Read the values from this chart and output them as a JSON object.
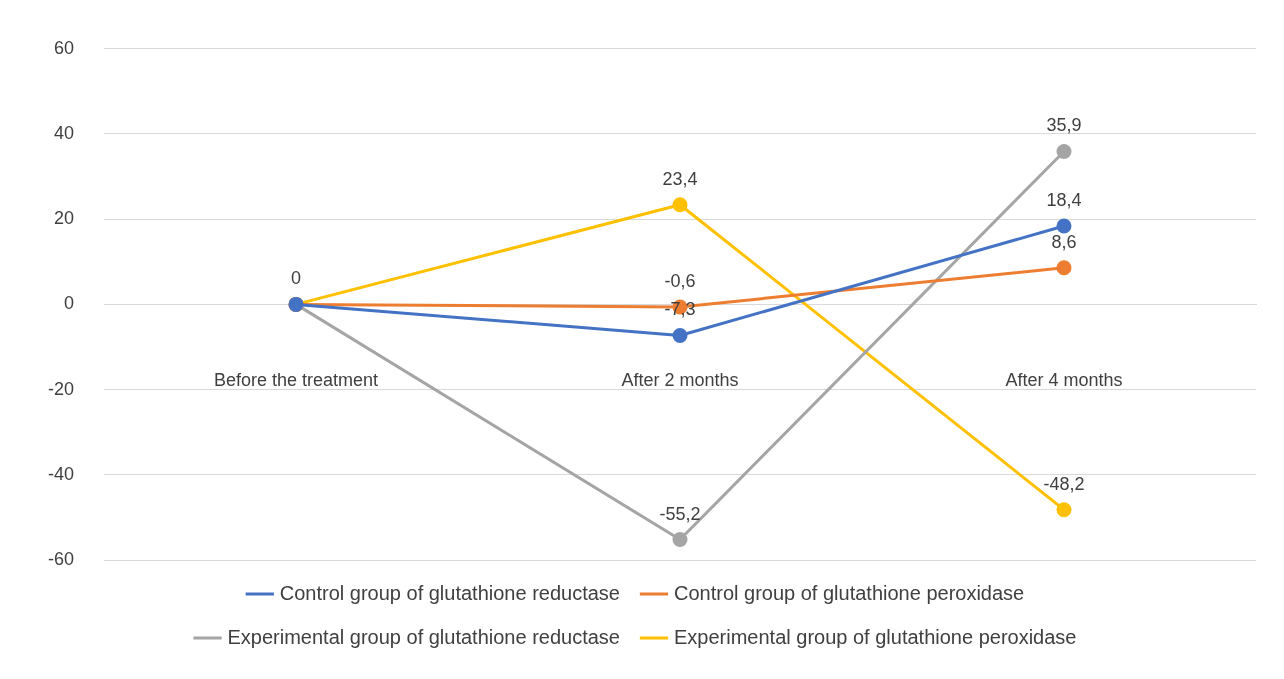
{
  "chart_data": {
    "type": "line",
    "categories": [
      "Before the treatment",
      "After 2 months",
      "After 4 months"
    ],
    "ylim": [
      -60,
      60
    ],
    "yticks": [
      -60,
      -40,
      -20,
      0,
      20,
      40,
      60
    ],
    "grid": "y",
    "legend": "bottom",
    "marker": "circle",
    "line_style": "solid",
    "series": [
      {
        "name": "Control group of glutathione reductase",
        "color": "#4472c4",
        "values": [
          0,
          -7.3,
          18.4
        ],
        "value_labels": [
          null,
          "-7,3",
          "18,4"
        ]
      },
      {
        "name": "Control group of glutathione peroxidase",
        "color": "#ed7d31",
        "values": [
          0,
          -0.6,
          8.6
        ],
        "value_labels": [
          null,
          "-0,6",
          "8,6"
        ]
      },
      {
        "name": "Experimental group of glutathione reductase",
        "color": "#a5a5a5",
        "values": [
          0,
          -55.2,
          35.9
        ],
        "value_labels": [
          null,
          "-55,2",
          "35,9"
        ]
      },
      {
        "name": "Experimental group of glutathione peroxidase",
        "color": "#ffc000",
        "values": [
          0,
          23.4,
          -48.2
        ],
        "value_labels": [
          "0",
          "23,4",
          "-48,2"
        ]
      }
    ]
  }
}
